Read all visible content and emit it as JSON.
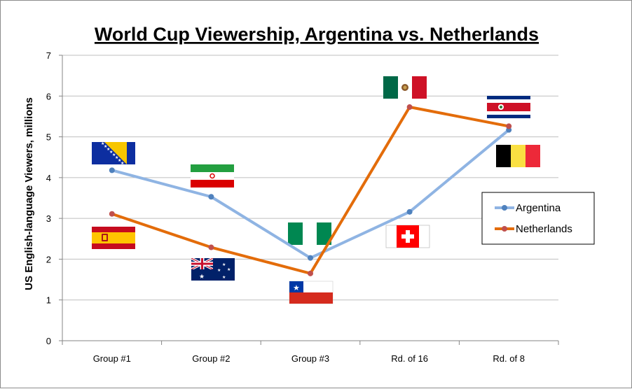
{
  "chart_data": {
    "type": "line",
    "title": "World Cup Viewership, Argentina vs. Netherlands",
    "xlabel": "",
    "ylabel": "US English-language Viewers, millions",
    "categories": [
      "Group #1",
      "Group #2",
      "Group #3",
      "Rd. of 16",
      "Rd. of 8"
    ],
    "ylim": [
      0,
      7
    ],
    "yticks": [
      0,
      1,
      2,
      3,
      4,
      5,
      6,
      7
    ],
    "grid": true,
    "legend_position": "right",
    "series": [
      {
        "name": "Argentina",
        "color": "#8fb4e3",
        "marker_color": "#4f81bd",
        "values": [
          4.18,
          3.53,
          2.03,
          3.16,
          5.17
        ]
      },
      {
        "name": "Netherlands",
        "color": "#e36c0a",
        "marker_color": "#c0504d",
        "values": [
          3.11,
          2.29,
          1.65,
          5.73,
          5.26
        ]
      }
    ],
    "opponent_flags": [
      {
        "match": "Group #1",
        "team": "Argentina",
        "opponent": "Bosnia and Herzegovina",
        "icon": "flag-bosnia-icon"
      },
      {
        "match": "Group #1",
        "team": "Netherlands",
        "opponent": "Spain",
        "icon": "flag-spain-icon"
      },
      {
        "match": "Group #2",
        "team": "Argentina",
        "opponent": "Iran",
        "icon": "flag-iran-icon"
      },
      {
        "match": "Group #2",
        "team": "Netherlands",
        "opponent": "Australia",
        "icon": "flag-australia-icon"
      },
      {
        "match": "Group #3",
        "team": "Argentina",
        "opponent": "Nigeria",
        "icon": "flag-nigeria-icon"
      },
      {
        "match": "Group #3",
        "team": "Netherlands",
        "opponent": "Chile",
        "icon": "flag-chile-icon"
      },
      {
        "match": "Rd. of 16",
        "team": "Argentina",
        "opponent": "Switzerland",
        "icon": "flag-switzerland-icon"
      },
      {
        "match": "Rd. of 16",
        "team": "Netherlands",
        "opponent": "Mexico",
        "icon": "flag-mexico-icon"
      },
      {
        "match": "Rd. of 8",
        "team": "Argentina",
        "opponent": "Belgium",
        "icon": "flag-belgium-icon"
      },
      {
        "match": "Rd. of 8",
        "team": "Netherlands",
        "opponent": "Costa Rica",
        "icon": "flag-costa-rica-icon"
      }
    ]
  }
}
